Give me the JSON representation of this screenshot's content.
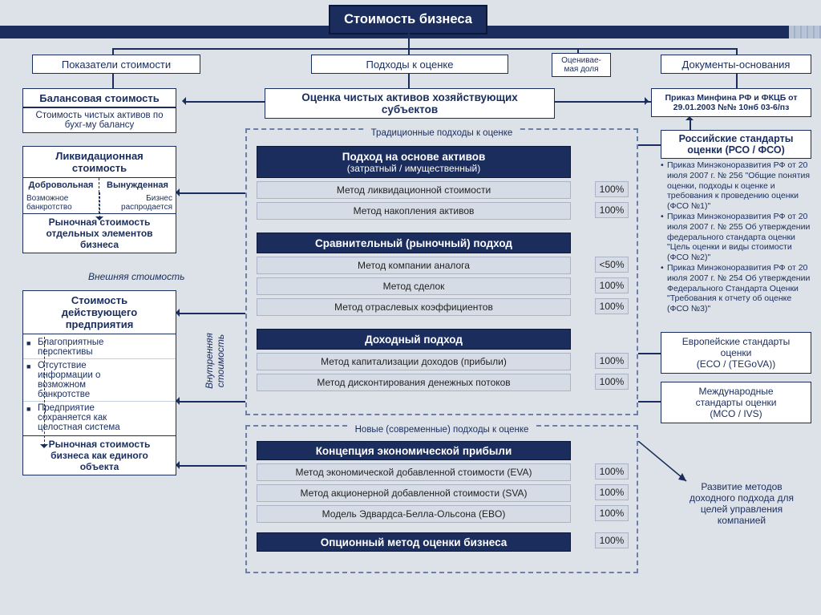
{
  "title": "Стоимость бизнеса",
  "colors": {
    "dark": "#1a2d5c",
    "gray": "#d6dce6",
    "bg": "#dde2e8",
    "border": "#1a2d5c"
  },
  "topRow": {
    "col1": "Показатели стоимости",
    "col2": "Подходы к оценке",
    "col3a": "Оценивае-",
    "col3b": "мая доля",
    "col4": "Документы-основания"
  },
  "row2": {
    "balance_title": "Балансовая стоимость",
    "balance_sub": "Стоимость чистых активов по бухг-му балансу",
    "netassets_a": "Оценка чистых активов хозяйствующих",
    "netassets_b": "субъектов",
    "order_a": "Приказ Минфина РФ и ФКЦБ от",
    "order_b": "29.01.2003 №№ 10нб 03-6/пз"
  },
  "liq": {
    "title": "Ликвидационная",
    "title2": "стоимость",
    "c1": "Добровольная",
    "c2": "Вынужденная",
    "n1a": "Возможное",
    "n1b": "банкротство",
    "n2a": "Бизнес",
    "n2b": "распродается",
    "foot1": "Рыночная стоимость",
    "foot2": "отдельных элементов",
    "foot3": "бизнеса"
  },
  "ext_label": "Внешняя стоимость",
  "int_label": "Внутренняя\nстоимость",
  "going": {
    "t1": "Стоимость",
    "t2": "действующего",
    "t3": "предприятия",
    "b1a": "Благоприятные",
    "b1b": "перспективы",
    "b2a": "Отсутствие",
    "b2b": "информации о",
    "b2c": "возможном",
    "b2d": "банкротстве",
    "b3a": "Предприятие",
    "b3b": "сохраняется как",
    "b3c": "целостная система",
    "f1": "Рыночная стоимость",
    "f2": "бизнеса как единого",
    "f3": "объекта"
  },
  "trad": {
    "caption": "Традиционные подходы к оценке",
    "h1a": "Подход на основе активов",
    "h1b": "(затратный / имущественный)",
    "m1": "Метод ликвидационной стоимости",
    "p1": "100%",
    "m2": "Метод накопления активов",
    "p2": "100%",
    "h2": "Сравнительный (рыночный) подход",
    "m3": "Метод компании аналога",
    "p3": "<50%",
    "m4": "Метод сделок",
    "p4": "100%",
    "m5": "Метод отраслевых коэффициентов",
    "p5": "100%",
    "h3": "Доходный подход",
    "m6": "Метод капитализации доходов (прибыли)",
    "p6": "100%",
    "m7": "Метод дисконтирования денежных потоков",
    "p7": "100%"
  },
  "new": {
    "caption": "Новые (современные) подходы к оценке",
    "h1": "Концепция экономической прибыли",
    "m1": "Метод экономической добавленной стоимости (EVA)",
    "p1": "100%",
    "m2": "Метод акционерной добавленной стоимости (SVA)",
    "p2": "100%",
    "m3": "Модель Эдвардса-Белла-Ольсона (EBO)",
    "p3": "100%",
    "h2": "Опционный метод оценки бизнеса",
    "p4": "100%"
  },
  "right": {
    "rso_t1": "Российские стандарты",
    "rso_t2": "оценки (РСО / ФСО)",
    "rso_items": [
      "Приказ Минэконоразвития РФ от 20 июля 2007 г. № 256 \"Общие понятия оценки, подходы к оценке и требования к проведению оценки (ФСО №1)\"",
      "Приказ Минэконоразвития РФ от 20 июля 2007 г. № 255 Об утверждении федерального стандарта оценки \"Цель оценки и виды стоимости (ФСО №2)\"",
      "Приказ Минэконоразвития РФ от 20 июля 2007 г. № 254 Об утверждении Федерального Стандарта Оценки \"Требования к отчету об оценке (ФСО №3)\""
    ],
    "eco1": "Европейские стандарты",
    "eco2": "оценки",
    "eco3": "(ECO / (TEGoVA))",
    "ivs1": "Международные",
    "ivs2": "стандарты оценки",
    "ivs3": "(MCO / IVS)",
    "note1": "Развитие методов",
    "note2": "доходного подхода для",
    "note3": "целей управления",
    "note4": "компанией"
  }
}
